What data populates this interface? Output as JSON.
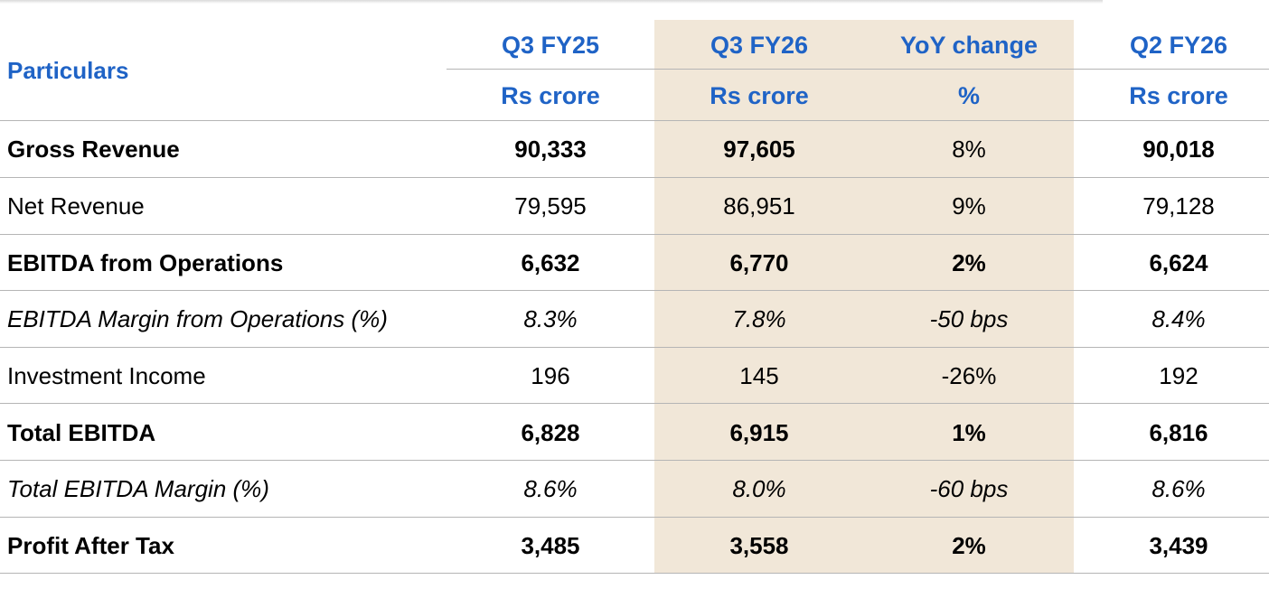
{
  "header": {
    "particulars": "Particulars",
    "columns": [
      {
        "period": "Q3 FY25",
        "unit": "Rs crore"
      },
      {
        "period": "Q3 FY26",
        "unit": "Rs crore"
      },
      {
        "period": "YoY change",
        "unit": "%"
      },
      {
        "period": "Q2 FY26",
        "unit": "Rs crore"
      }
    ]
  },
  "highlight_color": "#f1e7d8",
  "header_color": "#1f63c6",
  "rows": [
    {
      "label": "Gross Revenue",
      "style": "bold",
      "values": [
        "90,333",
        "97,605",
        "8%",
        "90,018"
      ]
    },
    {
      "label": "Net Revenue",
      "style": "normal",
      "values": [
        "79,595",
        "86,951",
        "9%",
        "79,128"
      ]
    },
    {
      "label": "EBITDA from Operations",
      "style": "bold",
      "values": [
        "6,632",
        "6,770",
        "2%",
        "6,624"
      ]
    },
    {
      "label": "EBITDA Margin from Operations (%)",
      "style": "italic",
      "values": [
        "8.3%",
        "7.8%",
        "-50 bps",
        "8.4%"
      ]
    },
    {
      "label": "Investment Income",
      "style": "normal",
      "values": [
        "196",
        "145",
        "-26%",
        "192"
      ]
    },
    {
      "label": "Total EBITDA",
      "style": "bold",
      "values": [
        "6,828",
        "6,915",
        "1%",
        "6,816"
      ]
    },
    {
      "label": "Total EBITDA Margin (%)",
      "style": "italic",
      "values": [
        "8.6%",
        "8.0%",
        "-60 bps",
        "8.6%"
      ]
    },
    {
      "label": "Profit After Tax",
      "style": "bold",
      "values": [
        "3,485",
        "3,558",
        "2%",
        "3,439"
      ]
    }
  ]
}
